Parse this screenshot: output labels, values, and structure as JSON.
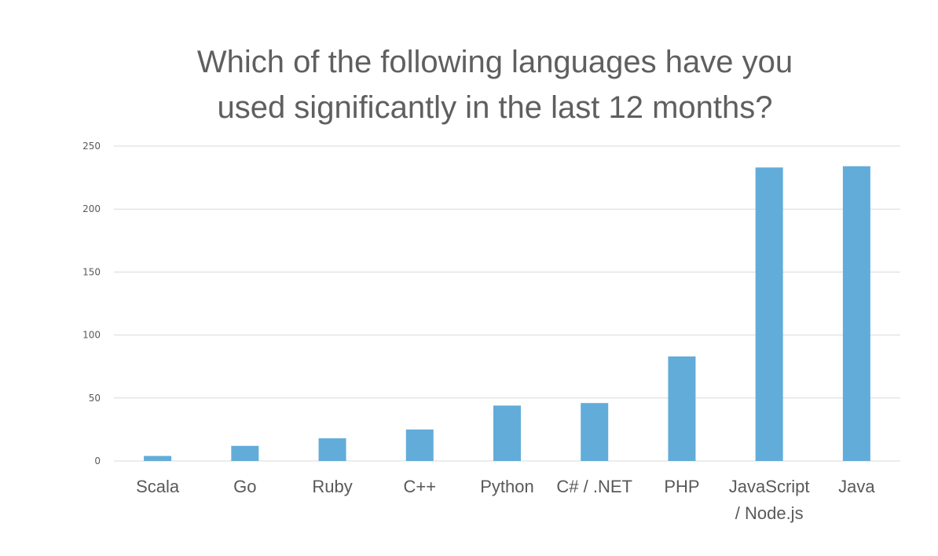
{
  "chart_data": {
    "type": "bar",
    "title_lines": [
      "Which of the following languages have you",
      "used significantly in the last 12 months?"
    ],
    "categories": [
      [
        "Scala"
      ],
      [
        "Go"
      ],
      [
        "Ruby"
      ],
      [
        "C++"
      ],
      [
        "Python"
      ],
      [
        "C# / .NET"
      ],
      [
        "PHP"
      ],
      [
        "JavaScript",
        "/ Node.js"
      ],
      [
        "Java"
      ]
    ],
    "values": [
      4,
      12,
      18,
      25,
      44,
      46,
      83,
      233,
      234
    ],
    "xlabel": "",
    "ylabel": "",
    "ylim": [
      0,
      250
    ],
    "yticks": [
      0,
      50,
      100,
      150,
      200,
      250
    ],
    "grid": true,
    "legend": "none",
    "colors": {
      "bar": "#62acd9",
      "grid": "#d9d9d9",
      "text": "#595959",
      "title": "#5f5f5f"
    }
  }
}
